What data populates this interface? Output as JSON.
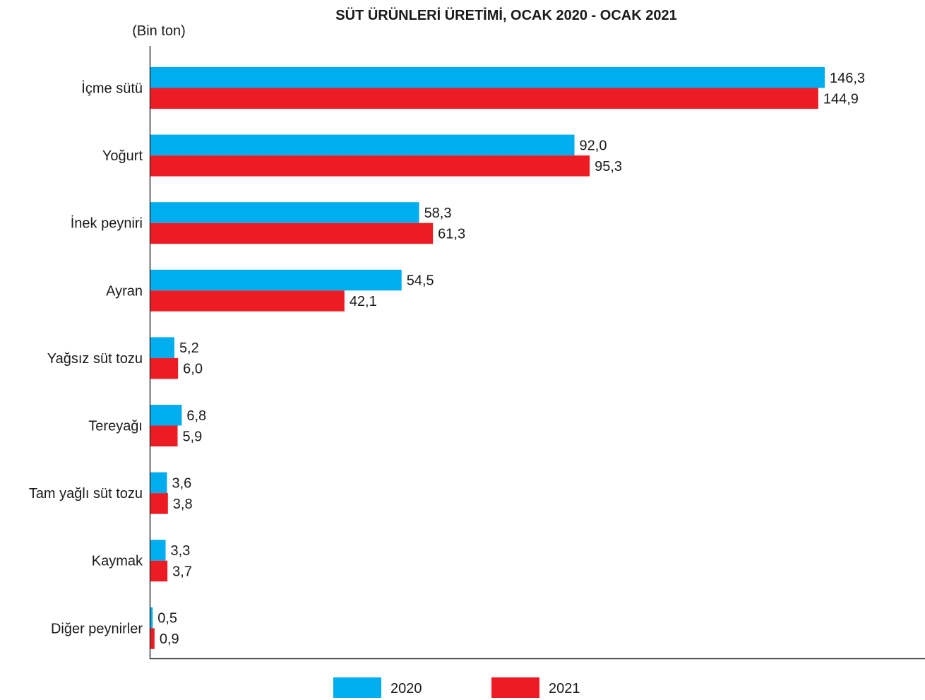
{
  "chart_data": {
    "type": "bar",
    "orientation": "horizontal",
    "title": "SÜT ÜRÜNLERİ ÜRETİMİ, OCAK 2020 - OCAK 2021",
    "unit_label": "(Bin ton)",
    "categories": [
      "İçme sütü",
      "Yoğurt",
      "İnek peyniri",
      "Ayran",
      "Yağsız süt tozu",
      "Tereyağı",
      "Tam yağlı süt tozu",
      "Kaymak",
      "Diğer peynirler"
    ],
    "series": [
      {
        "name": "2020",
        "color": "#00AEEF",
        "values": [
          146.3,
          92.0,
          58.3,
          54.5,
          5.2,
          6.8,
          3.6,
          3.3,
          0.5
        ],
        "labels": [
          "146,3",
          "92,0",
          "58,3",
          "54,5",
          "5,2",
          "6,8",
          "3,6",
          "3,3",
          "0,5"
        ]
      },
      {
        "name": "2021",
        "color": "#ED1C24",
        "values": [
          144.9,
          95.3,
          61.3,
          42.1,
          6.0,
          5.9,
          3.8,
          3.7,
          0.9
        ],
        "labels": [
          "144,9",
          "95,3",
          "61,3",
          "42,1",
          "6,0",
          "5,9",
          "3,8",
          "3,7",
          "0,9"
        ]
      }
    ],
    "xlim": [
      0,
      150
    ],
    "grid": false,
    "legend_position": "bottom"
  }
}
